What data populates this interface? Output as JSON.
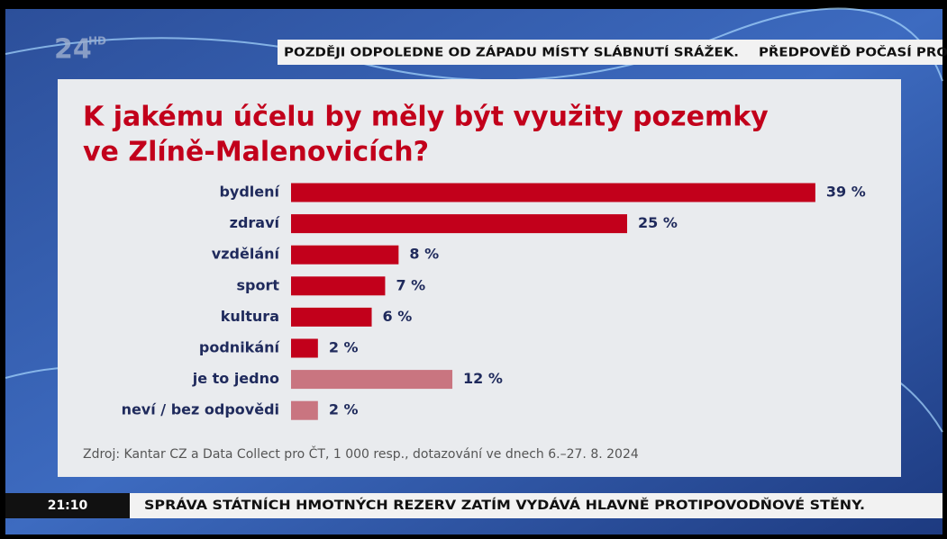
{
  "logo": {
    "channel": "24",
    "badge": "HD"
  },
  "ticker_top": [
    "POZDĚJI ODPOLEDNE OD ZÁPADU MÍSTY SLÁBNUTÍ SRÁŽEK.",
    "PŘEDPOVĚĎ POČASÍ PRO"
  ],
  "ticker_bottom": {
    "time": "21:10",
    "text": "SPRÁVA STÁTNÍCH HMOTNÝCH REZERV ZATÍM VYDÁVÁ HLAVNĚ PROTIPOVODŇOVÉ STĚNY."
  },
  "chart_data": {
    "type": "hbar",
    "title": [
      "K jakému účelu by měly být využity pozemky",
      "ve Zlíně-Malenovicích?"
    ],
    "categories": [
      "bydlení",
      "zdraví",
      "vzdělání",
      "sport",
      "kultura",
      "podnikání",
      "je to jedno",
      "neví / bez odpovědi"
    ],
    "values": [
      39,
      25,
      8,
      7,
      6,
      2,
      12,
      2
    ],
    "value_labels": [
      "39 %",
      "25 %",
      "8 %",
      "7 %",
      "6 %",
      "2 %",
      "12 %",
      "2 %"
    ],
    "colors": [
      "#c2001b",
      "#c2001b",
      "#c2001b",
      "#c2001b",
      "#c2001b",
      "#c2001b",
      "#c97580",
      "#c97580"
    ],
    "source": "Zdroj: Kantar CZ a Data Collect pro ČT, 1 000 resp., dotazování ve dnech 6.–27. 8. 2024"
  }
}
